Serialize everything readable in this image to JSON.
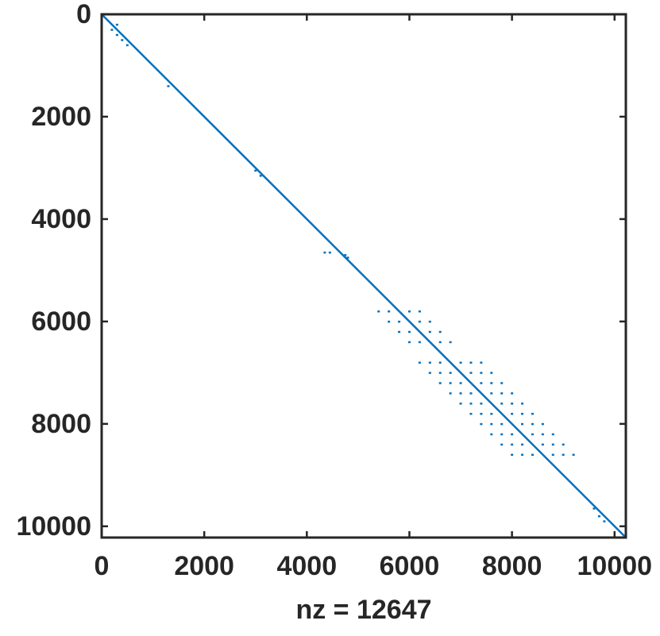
{
  "chart_data": {
    "type": "spy",
    "xlabel": "nz = 12647",
    "xlim": [
      0,
      10220
    ],
    "ylim": [
      0,
      10220
    ],
    "y_reversed": true,
    "xticks": [
      0,
      2000,
      4000,
      6000,
      8000,
      10000
    ],
    "yticks": [
      0,
      2000,
      4000,
      6000,
      8000,
      10000
    ],
    "color": "#0072bd",
    "diagonal": {
      "x": [
        0,
        10220
      ],
      "y": [
        0,
        10220
      ]
    },
    "x": [
      200,
      300,
      400,
      500,
      300,
      1300,
      3000,
      3100,
      4350,
      4450,
      4750,
      4800,
      9600,
      9700,
      9800,
      5400,
      5600,
      6000,
      6200,
      5600,
      5800,
      6200,
      6400,
      5800,
      6000,
      6400,
      6600,
      6000,
      6200,
      6600,
      6800,
      6200,
      6400,
      6600,
      7000,
      7200,
      7400,
      6400,
      6600,
      6800,
      7200,
      7400,
      7600,
      6600,
      6800,
      7000,
      7400,
      7600,
      7800,
      6800,
      7000,
      7200,
      7600,
      7800,
      8000,
      7000,
      7200,
      7400,
      7800,
      8000,
      8200,
      7200,
      7400,
      7600,
      8000,
      8200,
      8400,
      7400,
      7600,
      7800,
      8200,
      8400,
      8600,
      7600,
      7800,
      8000,
      8400,
      8600,
      8800,
      7800,
      8000,
      8200,
      8600,
      8800,
      9000,
      8000,
      8200,
      8400,
      8800,
      9000,
      9200
    ],
    "y": [
      300,
      400,
      500,
      600,
      200,
      1400,
      3050,
      3150,
      4650,
      4650,
      4700,
      4750,
      9650,
      9800,
      9900,
      5800,
      5800,
      5800,
      5800,
      6000,
      6000,
      6000,
      6000,
      6200,
      6200,
      6200,
      6200,
      6400,
      6400,
      6400,
      6400,
      6800,
      6800,
      6800,
      6800,
      6800,
      6800,
      7000,
      7000,
      7000,
      7000,
      7000,
      7000,
      7200,
      7200,
      7200,
      7200,
      7200,
      7200,
      7400,
      7400,
      7400,
      7400,
      7400,
      7400,
      7600,
      7600,
      7600,
      7600,
      7600,
      7600,
      7800,
      7800,
      7800,
      7800,
      7800,
      7800,
      8000,
      8000,
      8000,
      8000,
      8000,
      8000,
      8200,
      8200,
      8200,
      8200,
      8200,
      8200,
      8400,
      8400,
      8400,
      8400,
      8400,
      8400,
      8600,
      8600,
      8600,
      8600,
      8600,
      8600
    ]
  }
}
